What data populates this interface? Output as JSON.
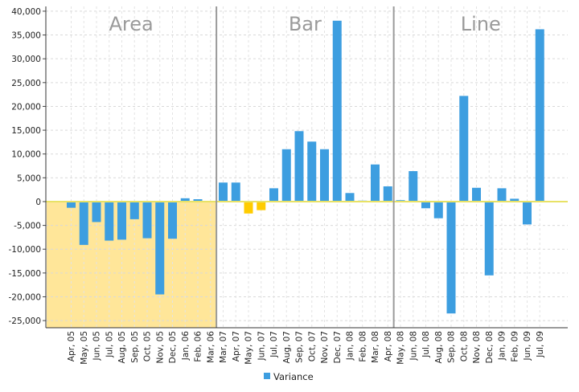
{
  "chart_data": {
    "type": "bar",
    "categories": [
      "Apr, 05",
      "May, 05",
      "Jun, 05",
      "Jul, 05",
      "Aug, 05",
      "Sep, 05",
      "Oct, 05",
      "Nov, 05",
      "Dec, 05",
      "Jan, 06",
      "Feb, 06",
      "Mar, 06",
      "Mar, 07",
      "Apr, 07",
      "May, 07",
      "Jun, 07",
      "Jul, 07",
      "Aug, 07",
      "Sep, 07",
      "Oct, 07",
      "Nov, 07",
      "Dec, 07",
      "Jan, 08",
      "Feb, 08",
      "Mar, 08",
      "Apr, 08",
      "May, 08",
      "Jun, 08",
      "Jul, 08",
      "Aug, 08",
      "Sep, 08",
      "Oct, 08",
      "Nov, 08",
      "Dec, 08",
      "Jan, 09",
      "Feb, 09",
      "Jun, 09",
      "Jul, 09"
    ],
    "series": [
      {
        "name": "Variance",
        "values": [
          -1300,
          -9100,
          -4300,
          -8200,
          -8000,
          -3700,
          -7700,
          -19500,
          -7800,
          700,
          500,
          0,
          4000,
          4000,
          -2500,
          -1800,
          2800,
          11000,
          14800,
          12600,
          11000,
          38000,
          1800,
          200,
          7800,
          3200,
          300,
          6400,
          -1400,
          -3500,
          -23500,
          22200,
          2900,
          -15500,
          2800,
          600,
          -4800,
          36200
        ],
        "highlight_color": "#ffcc00",
        "highlight_indices": [
          14,
          15
        ]
      }
    ],
    "ylim": [
      -26500,
      41000
    ],
    "yticks": [
      -25000,
      -20000,
      -15000,
      -10000,
      -5000,
      0,
      5000,
      10000,
      15000,
      20000,
      25000,
      30000,
      35000,
      40000
    ],
    "ytick_labels": [
      "-25,000",
      "-20,000",
      "-15,000",
      "-10,000",
      "-5,000",
      "0",
      "5,000",
      "10,000",
      "15,000",
      "20,000",
      "25,000",
      "30,000",
      "35,000",
      "40,000"
    ],
    "grid": true,
    "legend": {
      "position": "bottom",
      "items": [
        "Variance"
      ]
    },
    "sections": [
      {
        "title": "Area",
        "start": 0,
        "end": 11
      },
      {
        "title": "Bar",
        "start": 12,
        "end": 25
      },
      {
        "title": "Line",
        "start": 26,
        "end": 37
      }
    ],
    "area_fill_color": "#ffe699",
    "bar_color": "#3d9ee0",
    "zero_line_color": "#e8e266"
  }
}
